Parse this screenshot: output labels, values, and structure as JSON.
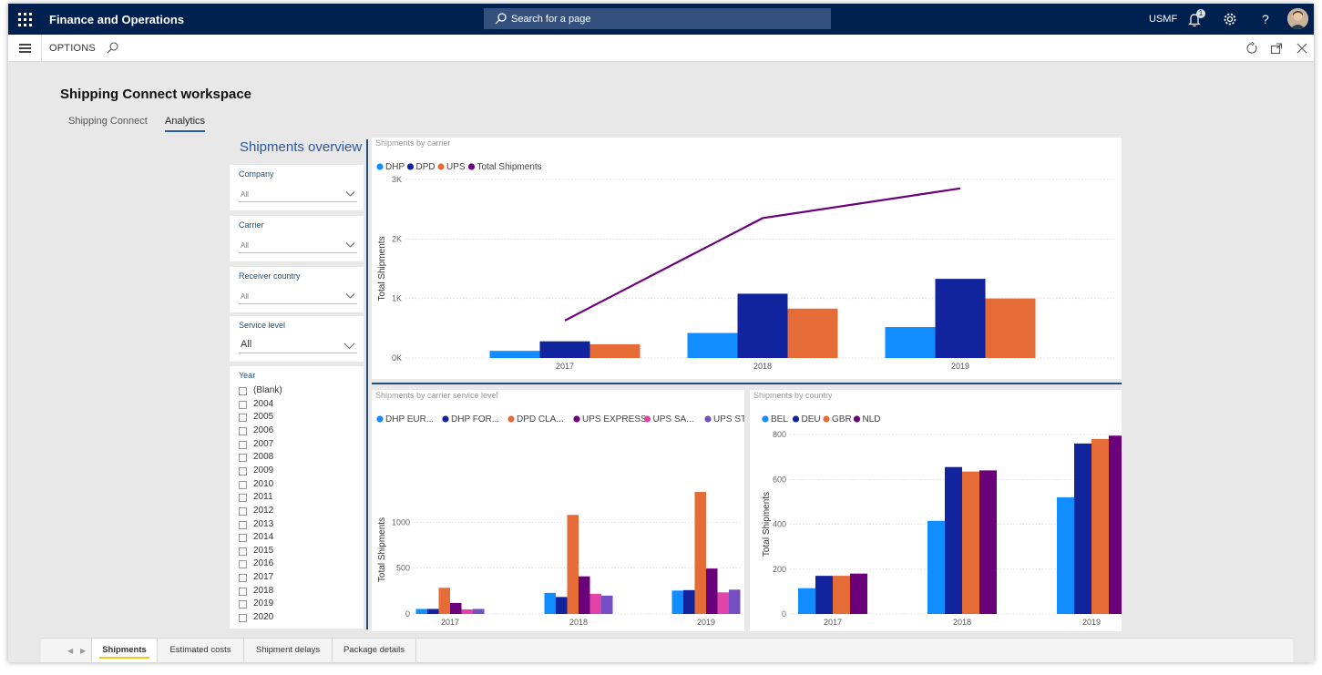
{
  "app": {
    "title": "Finance and Operations",
    "search_placeholder": "Search for a page",
    "company": "USMF",
    "notification_count": "1"
  },
  "actionbar": {
    "options": "OPTIONS"
  },
  "workspace": {
    "title": "Shipping Connect workspace",
    "tabs": [
      {
        "label": "Shipping Connect"
      },
      {
        "label": "Analytics"
      }
    ],
    "active_tab": "Analytics"
  },
  "slicers": {
    "title": "Shipments overview",
    "company": {
      "label": "Company",
      "value": "All"
    },
    "carrier": {
      "label": "Carrier",
      "value": "All"
    },
    "receiver_country": {
      "label": "Receiver country",
      "value": "All"
    },
    "service_level": {
      "label": "Service level",
      "value": "All"
    },
    "year": {
      "label": "Year",
      "items": [
        "(Blank)",
        "2004",
        "2005",
        "2006",
        "2007",
        "2008",
        "2009",
        "2010",
        "2011",
        "2012",
        "2013",
        "2014",
        "2015",
        "2016",
        "2017",
        "2018",
        "2019",
        "2020"
      ]
    }
  },
  "colors": {
    "dhp": "#118dff",
    "dpd": "#12239e",
    "ups": "#e66c37",
    "total": "#6b007b",
    "ups_saver": "#e044a7",
    "ups_standard": "#744ec2"
  },
  "bottom_tabs": [
    {
      "label": "Shipments"
    },
    {
      "label": "Estimated costs"
    },
    {
      "label": "Shipment delays"
    },
    {
      "label": "Package details"
    }
  ],
  "chart_data": [
    {
      "type": "bar",
      "title": "Shipments by carrier",
      "ylabel": "Total Shipments",
      "categories": [
        "2017",
        "2018",
        "2019"
      ],
      "yticks": [
        "0K",
        "1K",
        "2K",
        "3K"
      ],
      "ylim": [
        0,
        3000
      ],
      "legend": "top-left",
      "series": [
        {
          "name": "DHP",
          "values": [
            120,
            420,
            520
          ]
        },
        {
          "name": "DPD",
          "values": [
            280,
            1080,
            1330
          ]
        },
        {
          "name": "UPS",
          "values": [
            230,
            830,
            1000
          ]
        }
      ],
      "line_series": {
        "name": "Total Shipments",
        "values": [
          630,
          2350,
          2850
        ]
      }
    },
    {
      "type": "bar",
      "title": "Shipments by carrier service level",
      "ylabel": "Total Shipments",
      "categories": [
        "2017",
        "2018",
        "2019"
      ],
      "yticks": [
        "0",
        "500",
        "1000"
      ],
      "ylim": [
        0,
        1400
      ],
      "legend": "top-left",
      "series": [
        {
          "name": "DHP EUR...",
          "values": [
            55,
            230,
            255
          ]
        },
        {
          "name": "DHP FOR...",
          "values": [
            55,
            185,
            260
          ]
        },
        {
          "name": "DPD CLA...",
          "values": [
            285,
            1080,
            1330
          ]
        },
        {
          "name": "UPS EXPRESS",
          "values": [
            120,
            410,
            495
          ]
        },
        {
          "name": "UPS SA...",
          "values": [
            50,
            220,
            235
          ]
        },
        {
          "name": "UPS STA...",
          "values": [
            55,
            200,
            265
          ]
        }
      ]
    },
    {
      "type": "bar",
      "title": "Shipments by country",
      "ylabel": "Total Shipments",
      "categories": [
        "2017",
        "2018",
        "2019"
      ],
      "yticks": [
        "0",
        "200",
        "400",
        "600",
        "800"
      ],
      "ylim": [
        0,
        800
      ],
      "legend": "top-left",
      "series": [
        {
          "name": "BEL",
          "values": [
            115,
            415,
            520
          ]
        },
        {
          "name": "DEU",
          "values": [
            170,
            655,
            760
          ]
        },
        {
          "name": "GBR",
          "values": [
            170,
            635,
            780
          ]
        },
        {
          "name": "NLD",
          "values": [
            180,
            640,
            795
          ]
        }
      ]
    }
  ]
}
